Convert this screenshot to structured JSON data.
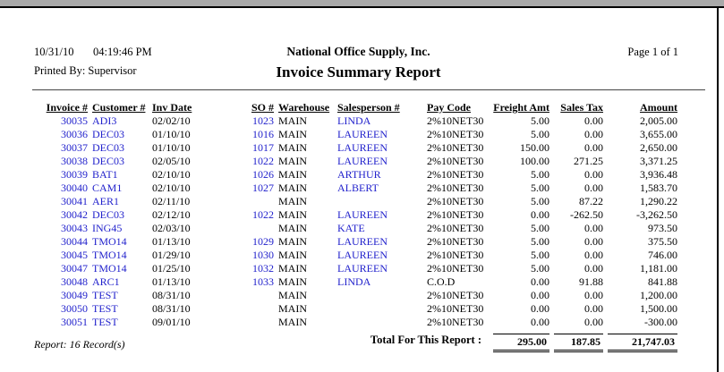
{
  "header": {
    "date": "10/31/10",
    "time": "04:19:46 PM",
    "company": "National Office Supply, Inc.",
    "page_label": "Page 1 of 1",
    "printed_by": "Printed By: Supervisor",
    "report_title": "Invoice Summary Report"
  },
  "table": {
    "columns": [
      "Invoice #",
      "Customer #",
      "Inv Date",
      "SO #",
      "Warehouse",
      "Salesperson #",
      "Pay Code",
      "Freight Amt",
      "Sales Tax",
      "Amount"
    ],
    "rows": [
      [
        "30035",
        "ADI3",
        "02/02/10",
        "1023",
        "MAIN",
        "LINDA",
        "2%10NET30",
        "5.00",
        "0.00",
        "2,005.00"
      ],
      [
        "30036",
        "DEC03",
        "01/10/10",
        "1016",
        "MAIN",
        "LAUREEN",
        "2%10NET30",
        "5.00",
        "0.00",
        "3,655.00"
      ],
      [
        "30037",
        "DEC03",
        "01/10/10",
        "1017",
        "MAIN",
        "LAUREEN",
        "2%10NET30",
        "150.00",
        "0.00",
        "2,650.00"
      ],
      [
        "30038",
        "DEC03",
        "02/05/10",
        "1022",
        "MAIN",
        "LAUREEN",
        "2%10NET30",
        "100.00",
        "271.25",
        "3,371.25"
      ],
      [
        "30039",
        "BAT1",
        "02/10/10",
        "1026",
        "MAIN",
        "ARTHUR",
        "2%10NET30",
        "5.00",
        "0.00",
        "3,936.48"
      ],
      [
        "30040",
        "CAM1",
        "02/10/10",
        "1027",
        "MAIN",
        "ALBERT",
        "2%10NET30",
        "5.00",
        "0.00",
        "1,583.70"
      ],
      [
        "30041",
        "AER1",
        "02/11/10",
        "",
        "MAIN",
        "",
        "2%10NET30",
        "5.00",
        "87.22",
        "1,290.22"
      ],
      [
        "30042",
        "DEC03",
        "02/12/10",
        "1022",
        "MAIN",
        "LAUREEN",
        "2%10NET30",
        "0.00",
        "-262.50",
        "-3,262.50"
      ],
      [
        "30043",
        "ING45",
        "02/03/10",
        "",
        "MAIN",
        "KATE",
        "2%10NET30",
        "5.00",
        "0.00",
        "973.50"
      ],
      [
        "30044",
        "TMO14",
        "01/13/10",
        "1029",
        "MAIN",
        "LAUREEN",
        "2%10NET30",
        "5.00",
        "0.00",
        "375.50"
      ],
      [
        "30045",
        "TMO14",
        "01/29/10",
        "1030",
        "MAIN",
        "LAUREEN",
        "2%10NET30",
        "5.00",
        "0.00",
        "746.00"
      ],
      [
        "30047",
        "TMO14",
        "01/25/10",
        "1032",
        "MAIN",
        "LAUREEN",
        "2%10NET30",
        "5.00",
        "0.00",
        "1,181.00"
      ],
      [
        "30048",
        "ARC1",
        "01/13/10",
        "1033",
        "MAIN",
        "LINDA",
        "C.O.D",
        "0.00",
        "91.88",
        "841.88"
      ],
      [
        "30049",
        "TEST",
        "08/31/10",
        "",
        "MAIN",
        "",
        "2%10NET30",
        "0.00",
        "0.00",
        "1,200.00"
      ],
      [
        "30050",
        "TEST",
        "08/31/10",
        "",
        "MAIN",
        "",
        "2%10NET30",
        "0.00",
        "0.00",
        "1,500.00"
      ],
      [
        "30051",
        "TEST",
        "09/01/10",
        "",
        "MAIN",
        "",
        "2%10NET30",
        "0.00",
        "0.00",
        "-300.00"
      ]
    ]
  },
  "footer": {
    "record_count": "Report: 16 Record(s)",
    "total_label": "Total For This Report :",
    "totals": {
      "freight": "295.00",
      "sales_tax": "187.85",
      "amount": "21,747.03"
    }
  },
  "colors": {
    "link_blue": "#2222cc",
    "titlebar_gray": "#a9a9a9"
  }
}
